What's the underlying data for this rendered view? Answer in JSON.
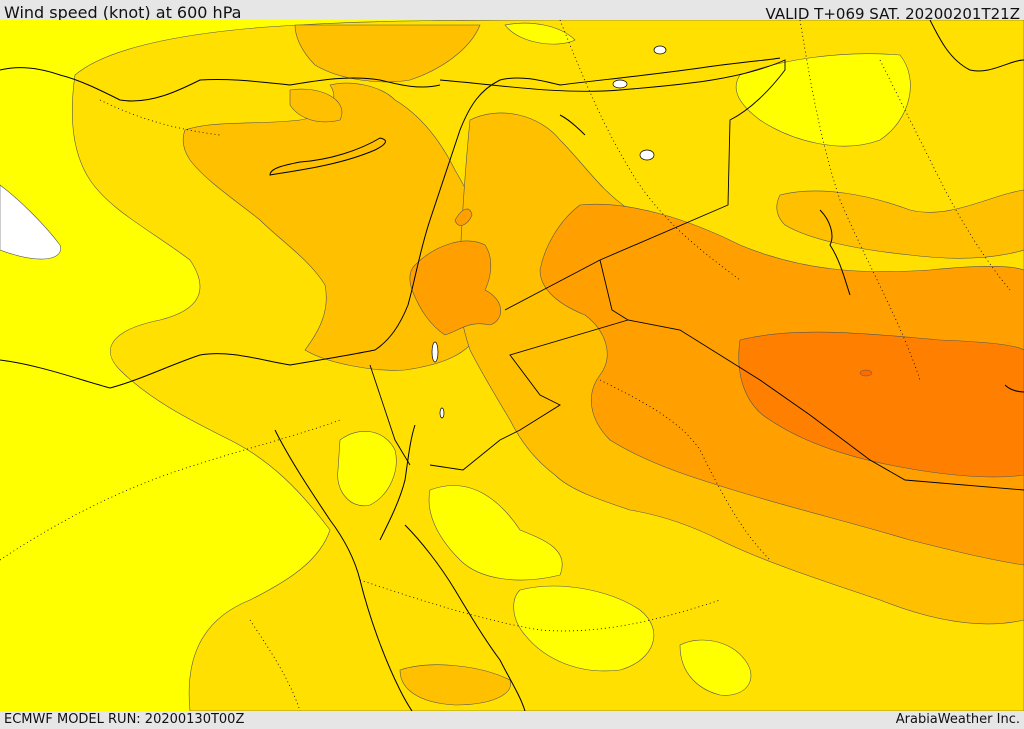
{
  "header": {
    "title": "Wind speed (knot) at 600 hPa",
    "valid": "VALID T+069 SAT. 20200201T21Z"
  },
  "footer": {
    "model_run": "ECMWF MODEL RUN: 20200130T00Z",
    "credit": "ArabiaWeather Inc."
  },
  "colors": {
    "level_1": "#ffff00",
    "level_2": "#ffe000",
    "level_3": "#ffc000",
    "level_4": "#ffa000",
    "level_5": "#ff8000",
    "low": "#ffffff",
    "coast": "#000000"
  }
}
